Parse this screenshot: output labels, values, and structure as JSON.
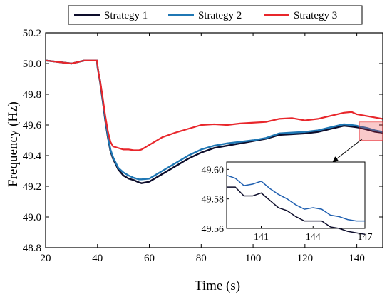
{
  "chart_data": {
    "type": "line",
    "xlabel": "Time (s)",
    "ylabel": "Frequency (Hz)",
    "xlim": [
      20,
      150
    ],
    "ylim": [
      48.8,
      50.2
    ],
    "xticks": [
      20,
      40,
      60,
      80,
      100,
      120,
      140
    ],
    "yticks": [
      48.8,
      49.0,
      49.2,
      49.4,
      49.6,
      49.8,
      50.0,
      50.2
    ],
    "legend_position": "top",
    "series": [
      {
        "name": "Strategy 1",
        "color": "#0d0d2b",
        "x": [
          20,
          25,
          30,
          35,
          39.8,
          40,
          40.5,
          41,
          42,
          43,
          44,
          45,
          46,
          48,
          50,
          52,
          54,
          56,
          57,
          60,
          65,
          70,
          75,
          80,
          85,
          90,
          95,
          100,
          105,
          110,
          115,
          120,
          125,
          130,
          135,
          138,
          140,
          141,
          144,
          147,
          150
        ],
        "y": [
          50.02,
          50.01,
          50.0,
          50.02,
          50.02,
          49.98,
          49.93,
          49.88,
          49.76,
          49.63,
          49.52,
          49.43,
          49.38,
          49.31,
          49.27,
          49.25,
          49.24,
          49.225,
          49.22,
          49.23,
          49.28,
          49.33,
          49.38,
          49.42,
          49.45,
          49.465,
          49.48,
          49.495,
          49.51,
          49.535,
          49.54,
          49.545,
          49.555,
          49.575,
          49.595,
          49.59,
          49.585,
          49.582,
          49.57,
          49.556,
          49.55
        ]
      },
      {
        "name": "Strategy 2",
        "color": "#1f77b4",
        "x": [
          20,
          25,
          30,
          35,
          39.8,
          40,
          40.5,
          41,
          42,
          43,
          44,
          45,
          46,
          48,
          50,
          52,
          54,
          56,
          57,
          60,
          65,
          70,
          75,
          80,
          85,
          90,
          95,
          100,
          105,
          110,
          115,
          120,
          125,
          130,
          135,
          138,
          140,
          141,
          144,
          147,
          150
        ],
        "y": [
          50.02,
          50.01,
          50.0,
          50.02,
          50.02,
          49.98,
          49.93,
          49.89,
          49.77,
          49.64,
          49.53,
          49.44,
          49.39,
          49.32,
          49.29,
          49.27,
          49.255,
          49.245,
          49.245,
          49.25,
          49.3,
          49.35,
          49.4,
          49.44,
          49.465,
          49.48,
          49.49,
          49.5,
          49.515,
          49.545,
          49.55,
          49.555,
          49.565,
          49.585,
          49.605,
          49.6,
          49.595,
          49.59,
          49.58,
          49.565,
          49.555
        ]
      },
      {
        "name": "Strategy 3",
        "color": "#e8262b",
        "x": [
          20,
          25,
          30,
          35,
          39.8,
          40,
          40.5,
          41,
          42,
          43,
          44,
          45,
          46,
          48,
          50,
          52,
          54,
          56,
          57,
          60,
          65,
          70,
          75,
          80,
          85,
          90,
          95,
          100,
          105,
          110,
          115,
          120,
          125,
          130,
          135,
          138,
          140,
          145,
          150
        ],
        "y": [
          50.02,
          50.01,
          50.0,
          50.02,
          50.02,
          49.99,
          49.93,
          49.89,
          49.78,
          49.66,
          49.56,
          49.49,
          49.46,
          49.45,
          49.44,
          49.44,
          49.435,
          49.435,
          49.44,
          49.47,
          49.52,
          49.55,
          49.575,
          49.6,
          49.605,
          49.6,
          49.61,
          49.615,
          49.62,
          49.64,
          49.645,
          49.63,
          49.64,
          49.66,
          49.68,
          49.685,
          49.67,
          49.655,
          49.64
        ]
      }
    ],
    "inset": {
      "xlim": [
        139,
        147
      ],
      "ylim": [
        49.56,
        49.605
      ],
      "xticks": [
        141,
        144,
        147
      ],
      "yticks": [
        49.56,
        49.58,
        49.6
      ],
      "xtick_labels": [
        "141",
        "144",
        "147"
      ],
      "ytick_labels": [
        "49.56",
        "49.58",
        "49.60"
      ],
      "highlight_box_x": [
        141,
        150
      ],
      "highlight_box_y": [
        49.5,
        49.62
      ],
      "highlight_color": "#e8262b",
      "series": [
        {
          "ref": "Strategy 1",
          "color": "#0d0d2b",
          "x": [
            139,
            139.5,
            140,
            140.5,
            141,
            141.5,
            142,
            142.5,
            143,
            143.5,
            144,
            144.5,
            145,
            145.5,
            146,
            146.5,
            147
          ],
          "y": [
            49.588,
            49.588,
            49.582,
            49.582,
            49.584,
            49.579,
            49.574,
            49.572,
            49.568,
            49.565,
            49.565,
            49.565,
            49.561,
            49.56,
            49.558,
            49.557,
            49.556
          ]
        },
        {
          "ref": "Strategy 2",
          "color": "#1f5fb0",
          "x": [
            139,
            139.5,
            140,
            140.5,
            141,
            141.5,
            142,
            142.5,
            143,
            143.5,
            144,
            144.5,
            145,
            145.5,
            146,
            146.5,
            147
          ],
          "y": [
            49.596,
            49.594,
            49.589,
            49.59,
            49.592,
            49.587,
            49.583,
            49.58,
            49.576,
            49.573,
            49.574,
            49.573,
            49.569,
            49.568,
            49.566,
            49.565,
            49.565
          ]
        }
      ]
    }
  }
}
